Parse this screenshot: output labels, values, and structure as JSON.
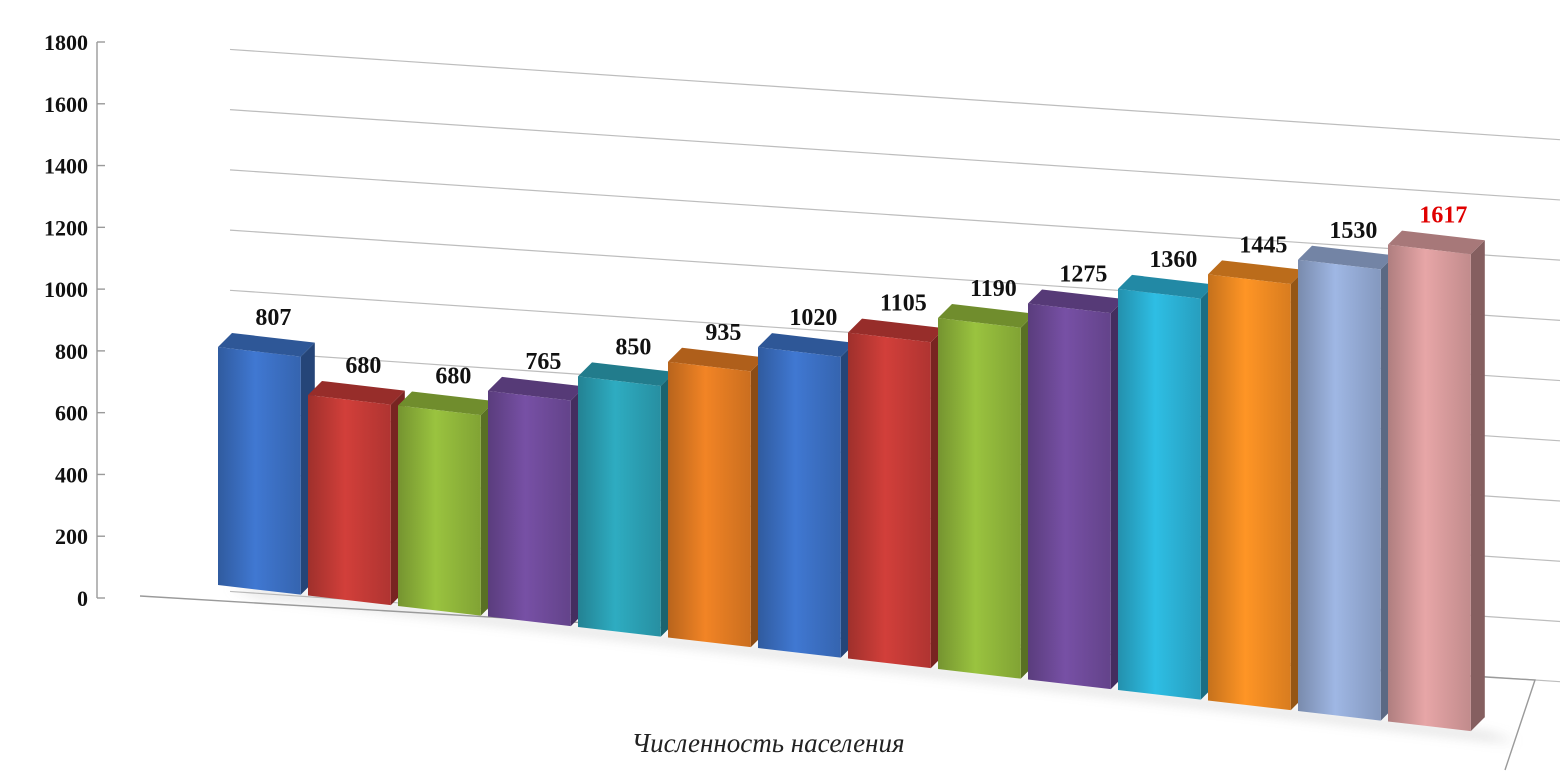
{
  "chart_data": {
    "type": "bar",
    "style": "3d-column",
    "xlabel": "Численность населения",
    "ylabel": "",
    "ylim": [
      0,
      1800
    ],
    "ytick_step": 200,
    "yticks": [
      "0",
      "200",
      "400",
      "600",
      "800",
      "1000",
      "1200",
      "1400",
      "1600",
      "1800"
    ],
    "grid": true,
    "legend": "none",
    "values": [
      807,
      680,
      680,
      765,
      850,
      935,
      1020,
      1105,
      1190,
      1275,
      1360,
      1445,
      1530,
      1617
    ],
    "labels": [
      "807",
      "680",
      "680",
      "765",
      "850",
      "935",
      "1020",
      "1105",
      "1190",
      "1275",
      "1360",
      "1445",
      "1530",
      "1617"
    ],
    "colors": [
      "#3b6fc2",
      "#c23a36",
      "#8fb53a",
      "#6e4a99",
      "#2b9fb3",
      "#e07a22",
      "#3b6fc2",
      "#c23a36",
      "#8fb53a",
      "#6e4a99",
      "#2bb0d3",
      "#f08a22",
      "#93a9d3",
      "#d69a9b"
    ],
    "highlight_index": 13,
    "highlight_color": "#e00000"
  }
}
